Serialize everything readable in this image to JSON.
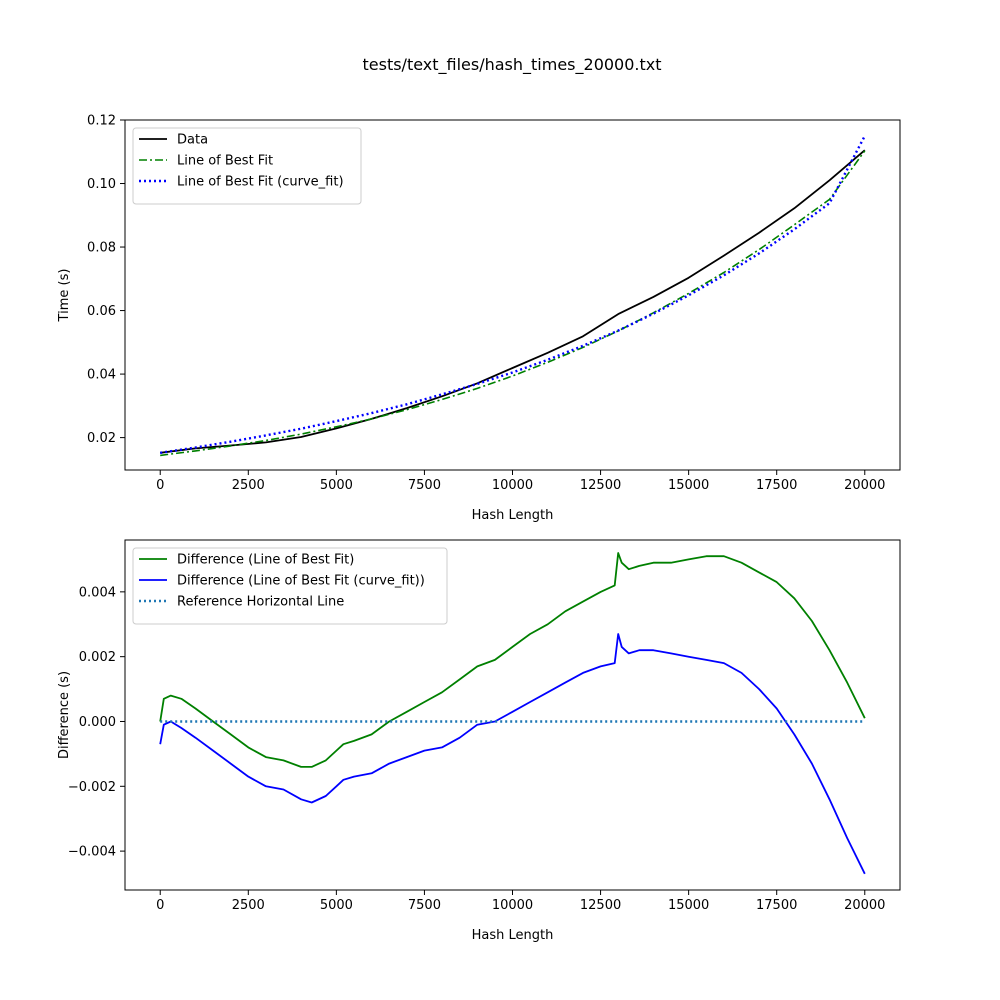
{
  "figure_title": "tests/text_files/hash_times_20000.txt",
  "colors": {
    "data": "#000000",
    "fit": "#008000",
    "curve_fit": "#0000ff",
    "reference": "#1f77b4"
  },
  "chart_data": [
    {
      "type": "line",
      "title": "",
      "xlabel": "Hash Length",
      "ylabel": "Time (s)",
      "xlim": [
        -1000,
        21000
      ],
      "ylim": [
        0.0098,
        0.12
      ],
      "xticks": [
        0,
        2500,
        5000,
        7500,
        10000,
        12500,
        15000,
        17500,
        20000
      ],
      "xtick_labels": [
        "0",
        "2500",
        "5000",
        "7500",
        "10000",
        "12500",
        "15000",
        "17500",
        "20000"
      ],
      "yticks": [
        0.02,
        0.04,
        0.06,
        0.08,
        0.1,
        0.12
      ],
      "ytick_labels": [
        "0.02",
        "0.04",
        "0.06",
        "0.08",
        "0.10",
        "0.12"
      ],
      "legend": "top-left",
      "grid": false,
      "x": [
        0,
        1000,
        2000,
        3000,
        4000,
        5000,
        6000,
        7000,
        8000,
        9000,
        10000,
        11000,
        12000,
        13000,
        14000,
        15000,
        16000,
        17000,
        18000,
        19000,
        20000
      ],
      "series": [
        {
          "name": "Data",
          "color": "#000000",
          "style": "solid",
          "values": [
            0.0152,
            0.0166,
            0.0175,
            0.0185,
            0.0202,
            0.0229,
            0.0259,
            0.0293,
            0.033,
            0.0371,
            0.0419,
            0.0467,
            0.0519,
            0.0589,
            0.0643,
            0.0703,
            0.0773,
            0.0845,
            0.0922,
            0.101,
            0.1105
          ]
        },
        {
          "name": "Line of Best Fit",
          "color": "#008000",
          "style": "dashdot",
          "values": [
            0.0144,
            0.0158,
            0.0174,
            0.0191,
            0.0211,
            0.0234,
            0.0259,
            0.0288,
            0.032,
            0.0355,
            0.0394,
            0.0437,
            0.0484,
            0.0536,
            0.0593,
            0.0654,
            0.072,
            0.0792,
            0.087,
            0.095,
            0.1103
          ]
        },
        {
          "name": "Line of Best Fit (curve_fit)",
          "color": "#0000ff",
          "style": "dotted",
          "values": [
            0.0152,
            0.0169,
            0.0187,
            0.0207,
            0.0228,
            0.0252,
            0.0277,
            0.0305,
            0.0336,
            0.0369,
            0.0405,
            0.0445,
            0.0489,
            0.0537,
            0.059,
            0.0648,
            0.0711,
            0.078,
            0.0856,
            0.0938,
            0.115
          ]
        }
      ]
    },
    {
      "type": "line",
      "title": "",
      "xlabel": "Hash Length",
      "ylabel": "Difference (s)",
      "xlim": [
        -1000,
        21000
      ],
      "ylim": [
        -0.0052,
        0.0056
      ],
      "xticks": [
        0,
        2500,
        5000,
        7500,
        10000,
        12500,
        15000,
        17500,
        20000
      ],
      "xtick_labels": [
        "0",
        "2500",
        "5000",
        "7500",
        "10000",
        "12500",
        "15000",
        "17500",
        "20000"
      ],
      "yticks": [
        -0.004,
        -0.002,
        0.0,
        0.002,
        0.004
      ],
      "ytick_labels": [
        "−0.004",
        "−0.002",
        "0.000",
        "0.002",
        "0.004"
      ],
      "legend": "top-left",
      "grid": false,
      "series": [
        {
          "name": "Difference (Line of Best Fit)",
          "color": "#008000",
          "style": "solid",
          "x": [
            0,
            100,
            300,
            600,
            1000,
            1500,
            2000,
            2500,
            3000,
            3500,
            4000,
            4300,
            4700,
            5000,
            5200,
            5500,
            6000,
            6500,
            7000,
            7500,
            8000,
            8500,
            9000,
            9500,
            10000,
            10500,
            11000,
            11500,
            12000,
            12500,
            12900,
            13000,
            13100,
            13300,
            13600,
            14000,
            14500,
            15000,
            15500,
            16000,
            16500,
            17000,
            17500,
            18000,
            18500,
            19000,
            19500,
            20000
          ],
          "values": [
            0.0,
            0.0007,
            0.0008,
            0.0007,
            0.0004,
            0.0,
            -0.0004,
            -0.0008,
            -0.0011,
            -0.0012,
            -0.0014,
            -0.0014,
            -0.0012,
            -0.0009,
            -0.0007,
            -0.0006,
            -0.0004,
            0.0,
            0.0003,
            0.0006,
            0.0009,
            0.0013,
            0.0017,
            0.0019,
            0.0023,
            0.0027,
            0.003,
            0.0034,
            0.0037,
            0.004,
            0.0042,
            0.0052,
            0.0049,
            0.0047,
            0.0048,
            0.0049,
            0.0049,
            0.005,
            0.0051,
            0.0051,
            0.0049,
            0.0046,
            0.0043,
            0.0038,
            0.0031,
            0.0022,
            0.0012,
            0.0001
          ]
        },
        {
          "name": "Difference (Line of Best Fit (curve_fit))",
          "color": "#0000ff",
          "style": "solid",
          "x": [
            0,
            100,
            300,
            600,
            1000,
            1500,
            2000,
            2500,
            3000,
            3500,
            4000,
            4300,
            4700,
            5000,
            5200,
            5500,
            6000,
            6500,
            7000,
            7500,
            8000,
            8500,
            9000,
            9500,
            10000,
            10500,
            11000,
            11500,
            12000,
            12500,
            12900,
            13000,
            13100,
            13300,
            13600,
            14000,
            14500,
            15000,
            15500,
            16000,
            16500,
            17000,
            17500,
            18000,
            18500,
            19000,
            19500,
            20000
          ],
          "values": [
            -0.0007,
            -0.0001,
            0.0,
            -0.0002,
            -0.0005,
            -0.0009,
            -0.0013,
            -0.0017,
            -0.002,
            -0.0021,
            -0.0024,
            -0.0025,
            -0.0023,
            -0.002,
            -0.0018,
            -0.0017,
            -0.0016,
            -0.0013,
            -0.0011,
            -0.0009,
            -0.0008,
            -0.0005,
            -0.0001,
            0.0,
            0.0003,
            0.0006,
            0.0009,
            0.0012,
            0.0015,
            0.0017,
            0.0018,
            0.0027,
            0.0023,
            0.0021,
            0.0022,
            0.0022,
            0.0021,
            0.002,
            0.0019,
            0.0018,
            0.0015,
            0.001,
            0.0004,
            -0.0004,
            -0.0013,
            -0.0024,
            -0.0036,
            -0.0047
          ]
        },
        {
          "name": "Reference Horizontal Line",
          "color": "#1f77b4",
          "style": "dotted",
          "x": [
            0,
            20000
          ],
          "values": [
            0.0,
            0.0
          ]
        }
      ]
    }
  ]
}
